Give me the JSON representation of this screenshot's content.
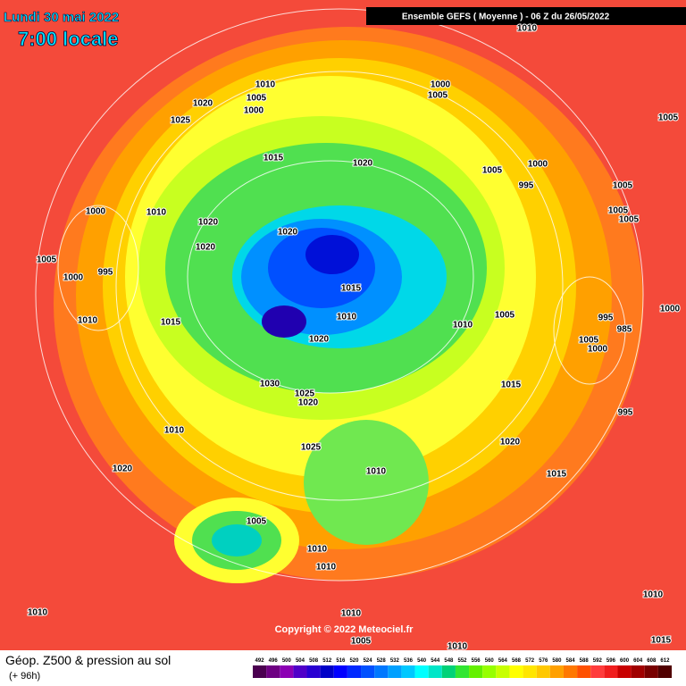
{
  "header": {
    "date": "Lundi 30 mai 2022",
    "time": "7:00 locale",
    "run": "Ensemble GEFS  ( Moyenne )  -  06 Z du 26/05/2022"
  },
  "footer": {
    "title": "Géop. Z500 & pression au sol",
    "lead": "(+ 96h)",
    "copyright": "Copyright © 2022 Meteociel.fr"
  },
  "legend": {
    "values": [
      492,
      496,
      500,
      504,
      508,
      512,
      516,
      520,
      524,
      528,
      532,
      536,
      540,
      544,
      548,
      552,
      556,
      560,
      564,
      568,
      572,
      576,
      580,
      584,
      588,
      592,
      596,
      600,
      604,
      608,
      612
    ],
    "colors": [
      "#4b0050",
      "#6e0082",
      "#8c00b4",
      "#5000c8",
      "#2800d2",
      "#0000c8",
      "#0000ff",
      "#0028ff",
      "#0050ff",
      "#0078ff",
      "#00a0ff",
      "#00c8ff",
      "#00ffff",
      "#00e6c8",
      "#00d278",
      "#32e632",
      "#64f000",
      "#96ff00",
      "#c8ff00",
      "#ffff00",
      "#ffe600",
      "#ffc800",
      "#ffa000",
      "#ff7800",
      "#ff5000",
      "#ff3c3c",
      "#f01e1e",
      "#c80000",
      "#a00000",
      "#780000",
      "#500000"
    ]
  },
  "isobar_labels": [
    "1010",
    "1010",
    "1000",
    "1005",
    "1005",
    "1000",
    "1020",
    "1025",
    "1005",
    "1015",
    "1020",
    "1005",
    "1000",
    "995",
    "1005",
    "1000",
    "1010",
    "1020",
    "1005",
    "1005",
    "1020",
    "1020",
    "1005",
    "995",
    "1000",
    "1015",
    "1010",
    "1005",
    "1010",
    "1000",
    "995",
    "1010",
    "1015",
    "1020",
    "1005",
    "1000",
    "985",
    "1030",
    "1015",
    "1025",
    "1020",
    "995",
    "1010",
    "1025",
    "1020",
    "1010",
    "1015",
    "1020",
    "1005",
    "1010",
    "1010",
    "1010",
    "1010",
    "1010",
    "1005",
    "1010",
    "1015"
  ]
}
